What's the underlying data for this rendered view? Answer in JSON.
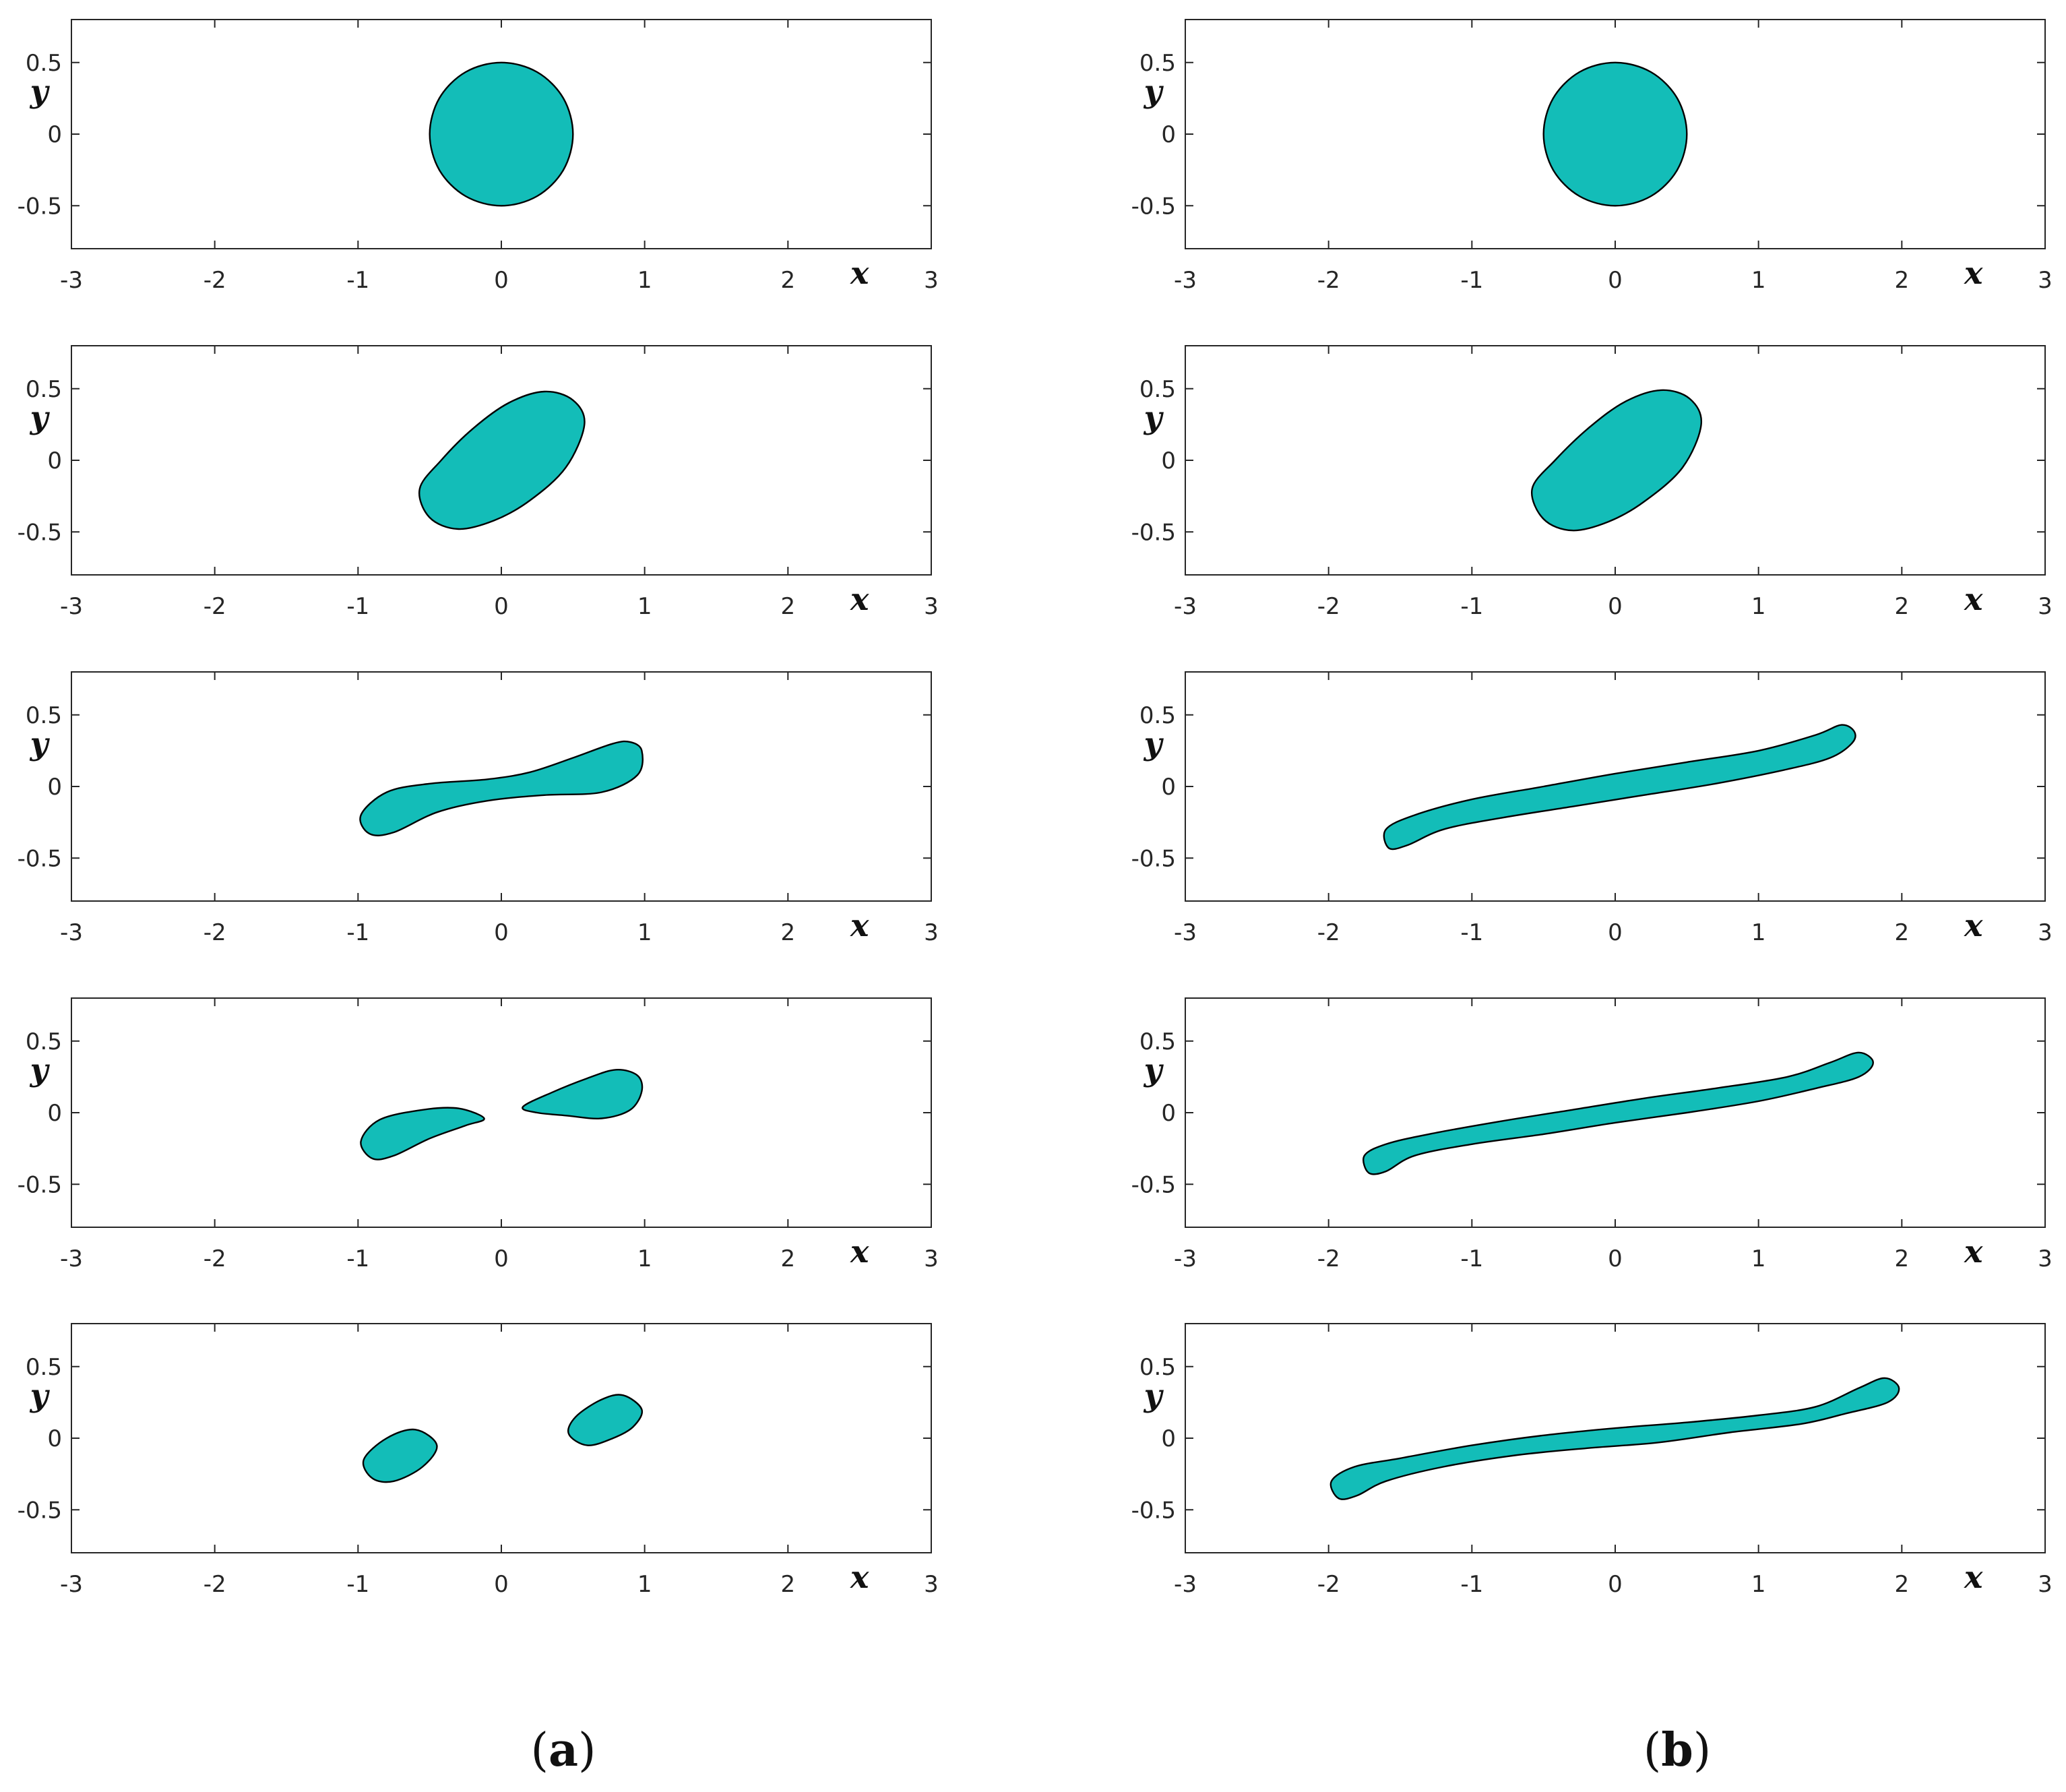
{
  "colors": {
    "drop_fill": "#13BDB8",
    "drop_edge": "#000000",
    "axes": "#262626"
  },
  "captions": {
    "a": "a",
    "b": "b",
    "open": "(",
    "close": ")"
  },
  "chart_data": [
    {
      "type": "shape",
      "column": "a",
      "panels": [
        {
          "xlim": [
            -3,
            3
          ],
          "ylim": [
            -0.8,
            0.8
          ],
          "xticks": [
            "-3",
            "-2",
            "-1",
            "0",
            "1",
            "2",
            "3"
          ],
          "yticks": [
            "0.5",
            "0",
            "-0.5"
          ],
          "xlabel": "x",
          "ylabel": "y",
          "drops": [
            [
              [
                0.5,
                0
              ],
              [
                0.433,
                0.25
              ],
              [
                0.25,
                0.433
              ],
              [
                0,
                0.5
              ],
              [
                -0.25,
                0.433
              ],
              [
                -0.433,
                0.25
              ],
              [
                -0.5,
                0
              ],
              [
                -0.433,
                -0.25
              ],
              [
                -0.25,
                -0.433
              ],
              [
                0,
                -0.5
              ],
              [
                0.25,
                -0.433
              ],
              [
                0.433,
                -0.25
              ]
            ]
          ]
        },
        {
          "xlim": [
            -3,
            3
          ],
          "ylim": [
            -0.8,
            0.8
          ],
          "xticks": [
            "-3",
            "-2",
            "-1",
            "0",
            "1",
            "2",
            "3"
          ],
          "yticks": [
            "0.5",
            "0",
            "-0.5"
          ],
          "xlabel": "x",
          "ylabel": "y",
          "drops": [
            [
              [
                0.58,
                0.25
              ],
              [
                0.5,
                0.42
              ],
              [
                0.3,
                0.48
              ],
              [
                0.05,
                0.4
              ],
              [
                -0.2,
                0.22
              ],
              [
                -0.42,
                0.0
              ],
              [
                -0.57,
                -0.2
              ],
              [
                -0.5,
                -0.4
              ],
              [
                -0.3,
                -0.48
              ],
              [
                -0.05,
                -0.42
              ],
              [
                0.2,
                -0.28
              ],
              [
                0.45,
                -0.05
              ]
            ]
          ]
        },
        {
          "xlim": [
            -3,
            3
          ],
          "ylim": [
            -0.8,
            0.8
          ],
          "xticks": [
            "-3",
            "-2",
            "-1",
            "0",
            "1",
            "2",
            "3"
          ],
          "yticks": [
            "0.5",
            "0",
            "-0.5"
          ],
          "xlabel": "x",
          "ylabel": "y",
          "drops": [
            [
              [
                0.98,
                0.25
              ],
              [
                0.9,
                0.31
              ],
              [
                0.78,
                0.3
              ],
              [
                0.5,
                0.2
              ],
              [
                0.2,
                0.1
              ],
              [
                -0.1,
                0.05
              ],
              [
                -0.5,
                0.02
              ],
              [
                -0.8,
                -0.04
              ],
              [
                -0.98,
                -0.2
              ],
              [
                -0.92,
                -0.33
              ],
              [
                -0.75,
                -0.32
              ],
              [
                -0.45,
                -0.18
              ],
              [
                -0.1,
                -0.1
              ],
              [
                0.3,
                -0.06
              ],
              [
                0.7,
                -0.04
              ],
              [
                0.95,
                0.08
              ]
            ]
          ]
        },
        {
          "xlim": [
            -3,
            3
          ],
          "ylim": [
            -0.8,
            0.8
          ],
          "xticks": [
            "-3",
            "-2",
            "-1",
            "0",
            "1",
            "2",
            "3"
          ],
          "yticks": [
            "0.5",
            "0",
            "-0.5"
          ],
          "xlabel": "x",
          "ylabel": "y",
          "drops": [
            [
              [
                -0.12,
                -0.04
              ],
              [
                -0.3,
                0.03
              ],
              [
                -0.55,
                0.02
              ],
              [
                -0.85,
                -0.05
              ],
              [
                -0.98,
                -0.2
              ],
              [
                -0.9,
                -0.32
              ],
              [
                -0.75,
                -0.3
              ],
              [
                -0.5,
                -0.18
              ],
              [
                -0.25,
                -0.09
              ]
            ],
            [
              [
                0.15,
                0.04
              ],
              [
                0.35,
                0.14
              ],
              [
                0.6,
                0.24
              ],
              [
                0.8,
                0.3
              ],
              [
                0.95,
                0.26
              ],
              [
                0.98,
                0.15
              ],
              [
                0.9,
                0.02
              ],
              [
                0.7,
                -0.04
              ],
              [
                0.45,
                -0.02
              ],
              [
                0.25,
                0.0
              ]
            ]
          ]
        },
        {
          "xlim": [
            -3,
            3
          ],
          "ylim": [
            -0.8,
            0.8
          ],
          "xticks": [
            "-3",
            "-2",
            "-1",
            "0",
            "1",
            "2",
            "3"
          ],
          "yticks": [
            "0.5",
            "0",
            "-0.5"
          ],
          "xlabel": "x",
          "ylabel": "y",
          "drops": [
            [
              [
                -0.45,
                -0.05
              ],
              [
                -0.6,
                0.06
              ],
              [
                -0.8,
                0.0
              ],
              [
                -0.96,
                -0.15
              ],
              [
                -0.9,
                -0.28
              ],
              [
                -0.75,
                -0.3
              ],
              [
                -0.55,
                -0.2
              ]
            ],
            [
              [
                0.98,
                0.2
              ],
              [
                0.85,
                0.3
              ],
              [
                0.7,
                0.27
              ],
              [
                0.52,
                0.15
              ],
              [
                0.47,
                0.03
              ],
              [
                0.6,
                -0.05
              ],
              [
                0.78,
                0.0
              ],
              [
                0.92,
                0.08
              ]
            ]
          ]
        }
      ]
    },
    {
      "type": "shape",
      "column": "b",
      "panels": [
        {
          "xlim": [
            -3,
            3
          ],
          "ylim": [
            -0.8,
            0.8
          ],
          "xticks": [
            "-3",
            "-2",
            "-1",
            "0",
            "1",
            "2",
            "3"
          ],
          "yticks": [
            "0.5",
            "0",
            "-0.5"
          ],
          "xlabel": "x",
          "ylabel": "y",
          "drops": [
            [
              [
                0.5,
                0
              ],
              [
                0.433,
                0.25
              ],
              [
                0.25,
                0.433
              ],
              [
                0,
                0.5
              ],
              [
                -0.25,
                0.433
              ],
              [
                -0.433,
                0.25
              ],
              [
                -0.5,
                0
              ],
              [
                -0.433,
                -0.25
              ],
              [
                -0.25,
                -0.433
              ],
              [
                0,
                -0.5
              ],
              [
                0.25,
                -0.433
              ],
              [
                0.433,
                -0.25
              ]
            ]
          ]
        },
        {
          "xlim": [
            -3,
            3
          ],
          "ylim": [
            -0.8,
            0.8
          ],
          "xticks": [
            "-3",
            "-2",
            "-1",
            "0",
            "1",
            "2",
            "3"
          ],
          "yticks": [
            "0.5",
            "0",
            "-0.5"
          ],
          "xlabel": "x",
          "ylabel": "y",
          "drops": [
            [
              [
                0.6,
                0.25
              ],
              [
                0.52,
                0.43
              ],
              [
                0.32,
                0.49
              ],
              [
                0.07,
                0.41
              ],
              [
                -0.18,
                0.23
              ],
              [
                -0.42,
                0.0
              ],
              [
                -0.58,
                -0.2
              ],
              [
                -0.5,
                -0.41
              ],
              [
                -0.3,
                -0.49
              ],
              [
                -0.05,
                -0.43
              ],
              [
                0.2,
                -0.29
              ],
              [
                0.47,
                -0.05
              ]
            ]
          ]
        },
        {
          "xlim": [
            -3,
            3
          ],
          "ylim": [
            -0.8,
            0.8
          ],
          "xticks": [
            "-3",
            "-2",
            "-1",
            "0",
            "1",
            "2",
            "3"
          ],
          "yticks": [
            "0.5",
            "0",
            "-0.5"
          ],
          "xlabel": "x",
          "ylabel": "y",
          "drops": [
            [
              [
                1.67,
                0.38
              ],
              [
                1.58,
                0.43
              ],
              [
                1.4,
                0.36
              ],
              [
                1.0,
                0.25
              ],
              [
                0.5,
                0.17
              ],
              [
                0.0,
                0.09
              ],
              [
                -0.5,
                0.0
              ],
              [
                -1.0,
                -0.09
              ],
              [
                -1.4,
                -0.2
              ],
              [
                -1.6,
                -0.3
              ],
              [
                -1.58,
                -0.43
              ],
              [
                -1.45,
                -0.41
              ],
              [
                -1.2,
                -0.3
              ],
              [
                -0.8,
                -0.22
              ],
              [
                -0.3,
                -0.14
              ],
              [
                0.2,
                -0.06
              ],
              [
                0.7,
                0.02
              ],
              [
                1.2,
                0.12
              ],
              [
                1.5,
                0.2
              ],
              [
                1.65,
                0.3
              ]
            ]
          ]
        },
        {
          "xlim": [
            -3,
            3
          ],
          "ylim": [
            -0.8,
            0.8
          ],
          "xticks": [
            "-3",
            "-2",
            "-1",
            "0",
            "1",
            "2",
            "3"
          ],
          "yticks": [
            "0.5",
            "0",
            "-0.5"
          ],
          "xlabel": "x",
          "ylabel": "y",
          "drops": [
            [
              [
                1.8,
                0.35
              ],
              [
                1.7,
                0.42
              ],
              [
                1.5,
                0.35
              ],
              [
                1.2,
                0.25
              ],
              [
                0.7,
                0.17
              ],
              [
                0.2,
                0.1
              ],
              [
                -0.3,
                0.02
              ],
              [
                -0.8,
                -0.06
              ],
              [
                -1.3,
                -0.15
              ],
              [
                -1.6,
                -0.22
              ],
              [
                -1.75,
                -0.3
              ],
              [
                -1.72,
                -0.42
              ],
              [
                -1.6,
                -0.41
              ],
              [
                -1.4,
                -0.3
              ],
              [
                -1.0,
                -0.22
              ],
              [
                -0.5,
                -0.15
              ],
              [
                0.0,
                -0.07
              ],
              [
                0.5,
                0.0
              ],
              [
                1.0,
                0.08
              ],
              [
                1.4,
                0.17
              ],
              [
                1.7,
                0.25
              ]
            ]
          ]
        },
        {
          "xlim": [
            -3,
            3
          ],
          "ylim": [
            -0.8,
            0.8
          ],
          "xticks": [
            "-3",
            "-2",
            "-1",
            "0",
            "1",
            "2",
            "3"
          ],
          "yticks": [
            "0.5",
            "0",
            "-0.5"
          ],
          "xlabel": "x",
          "ylabel": "y",
          "drops": [
            [
              [
                1.98,
                0.35
              ],
              [
                1.88,
                0.42
              ],
              [
                1.7,
                0.35
              ],
              [
                1.4,
                0.22
              ],
              [
                1.0,
                0.16
              ],
              [
                0.5,
                0.11
              ],
              [
                0.0,
                0.07
              ],
              [
                -0.5,
                0.02
              ],
              [
                -1.0,
                -0.05
              ],
              [
                -1.5,
                -0.14
              ],
              [
                -1.82,
                -0.2
              ],
              [
                -1.98,
                -0.3
              ],
              [
                -1.93,
                -0.42
              ],
              [
                -1.8,
                -0.4
              ],
              [
                -1.6,
                -0.3
              ],
              [
                -1.2,
                -0.2
              ],
              [
                -0.7,
                -0.12
              ],
              [
                -0.2,
                -0.07
              ],
              [
                0.3,
                -0.03
              ],
              [
                0.8,
                0.04
              ],
              [
                1.3,
                0.1
              ],
              [
                1.6,
                0.17
              ],
              [
                1.9,
                0.25
              ]
            ]
          ]
        }
      ]
    }
  ]
}
